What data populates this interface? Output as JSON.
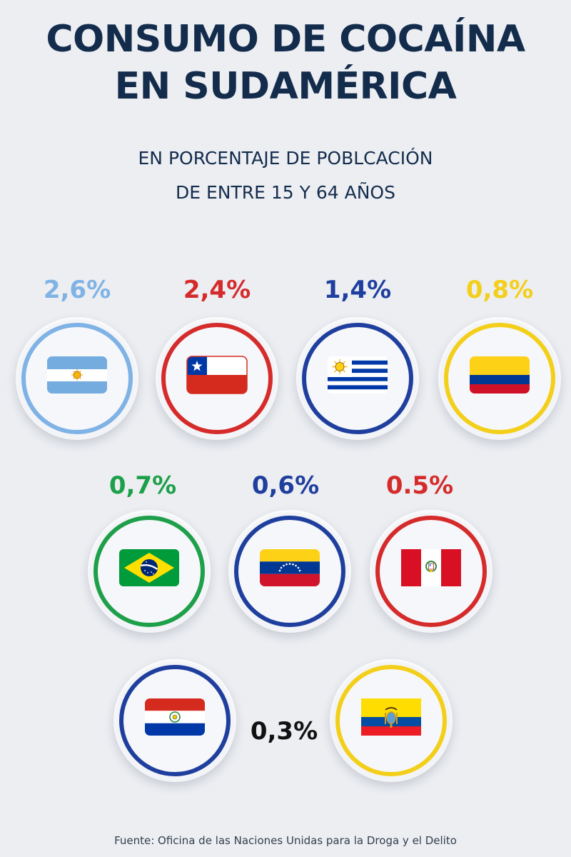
{
  "header": {
    "title_line1": "CONSUMO DE COCAÍNA",
    "title_line2": "EN SUDAMÉRICA",
    "subtitle_line1": "EN PORCENTAJE DE POBLCACIÓN",
    "subtitle_line2": "DE ENTRE 15 Y 64 AÑOS"
  },
  "countries": [
    {
      "flag": "argentina-flag",
      "value": "2,6%",
      "color": "#7fb2e5"
    },
    {
      "flag": "chile-flag",
      "value": "2,4%",
      "color": "#d52b2b"
    },
    {
      "flag": "uruguay-flag",
      "value": "1,4%",
      "color": "#1f3f9e"
    },
    {
      "flag": "colombia-flag",
      "value": "0,8%",
      "color": "#f3cf1a"
    },
    {
      "flag": "brazil-flag",
      "value": "0,7%",
      "color": "#1ea04a"
    },
    {
      "flag": "venezuela-flag",
      "value": "0,6%",
      "color": "#1f3f9e"
    },
    {
      "flag": "peru-flag",
      "value": "0.5%",
      "color": "#d52b2b"
    },
    {
      "flag": "paraguay-flag",
      "value": "",
      "color": "#1f3f9e"
    },
    {
      "flag": "ecuador-flag",
      "value": "",
      "color": "#f3cf1a"
    }
  ],
  "shared_value": {
    "value": "0,3%",
    "color": "#111111"
  },
  "footer": {
    "source": "Fuente: Oficina de las Naciones Unidas para la Droga y el Delito"
  }
}
